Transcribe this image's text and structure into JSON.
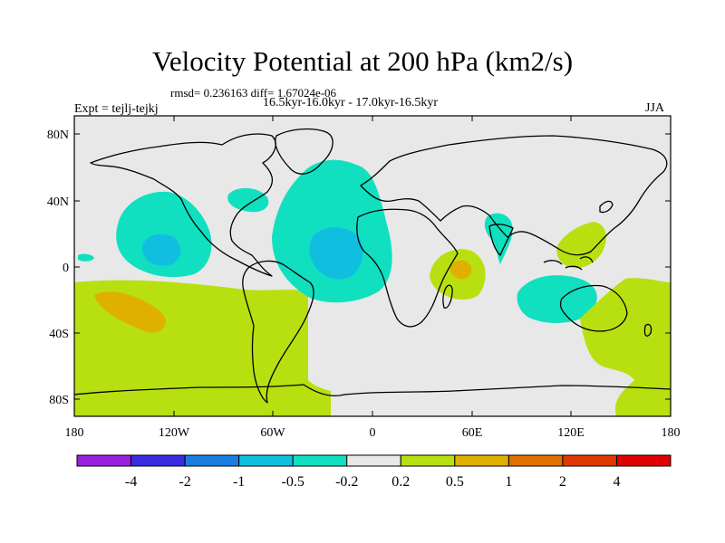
{
  "title": "Velocity Potential at 200 hPa (km2/s)",
  "stats": "rmsd= 0.236163 diff= 1.67024e-06",
  "period": "16.5kyr-16.0kyr - 17.0kyr-16.5kyr",
  "expt": "Expt = tejlj-tejkj",
  "season": "JJA",
  "y_ticks": [
    "80N",
    "40N",
    "0",
    "40S",
    "80S"
  ],
  "x_ticks": [
    "180",
    "120W",
    "60W",
    "0",
    "60E",
    "120E",
    "180"
  ],
  "colorbar": {
    "colors": [
      "#9b1fe0",
      "#3a2ce0",
      "#1a7fe0",
      "#10bfe0",
      "#10e0c0",
      "#e8e8e8",
      "#b8e010",
      "#e0b000",
      "#e07000",
      "#e03a00",
      "#e00000"
    ],
    "labels": [
      "-4",
      "-2",
      "-1",
      "-0.5",
      "-0.2",
      "0.2",
      "0.5",
      "1",
      "2",
      "4"
    ]
  },
  "map_colors": {
    "background": "#e8e8e8",
    "neg_light": "#10e0c0",
    "neg_mid": "#10bfe0",
    "pos_light": "#b8e010",
    "pos_mid": "#e0b000"
  }
}
